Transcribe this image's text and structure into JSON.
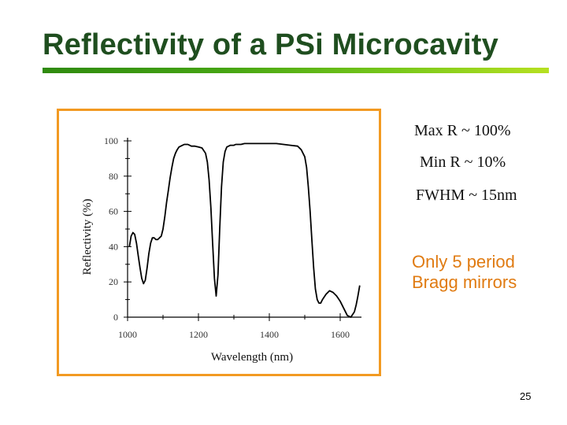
{
  "slide": {
    "title": "Reflectivity of a PSi Microcavity",
    "page_number": "25",
    "annotations": {
      "max_r": "Max R ~ 100%",
      "min_r": "Min R ~ 10%",
      "fwhm": "FWHM ~ 15nm",
      "note_line1": "Only 5 period",
      "note_line2": "Bragg mirrors"
    },
    "colors": {
      "title": "#1f4e1f",
      "accent_orange": "#f29a22",
      "note_orange": "#e07b12",
      "curve": "#000000"
    }
  },
  "chart_data": {
    "type": "line",
    "title": "",
    "xlabel": "Wavelength (nm)",
    "ylabel": "Reflectivity (%)",
    "xlim": [
      1000,
      1660
    ],
    "ylim": [
      0,
      100
    ],
    "xticks": [
      1000,
      1200,
      1400,
      1600
    ],
    "yticks": [
      0,
      20,
      40,
      60,
      80,
      100
    ],
    "grid": false,
    "series": [
      {
        "name": "reflectivity",
        "x": [
          1005,
          1010,
          1015,
          1020,
          1025,
          1030,
          1035,
          1040,
          1045,
          1050,
          1055,
          1060,
          1065,
          1070,
          1075,
          1080,
          1085,
          1090,
          1095,
          1100,
          1105,
          1110,
          1115,
          1120,
          1125,
          1130,
          1135,
          1140,
          1145,
          1150,
          1155,
          1160,
          1165,
          1170,
          1175,
          1180,
          1190,
          1200,
          1210,
          1220,
          1225,
          1230,
          1235,
          1240,
          1245,
          1250,
          1255,
          1260,
          1265,
          1270,
          1275,
          1280,
          1285,
          1290,
          1295,
          1300,
          1305,
          1310,
          1320,
          1330,
          1340,
          1360,
          1380,
          1400,
          1420,
          1440,
          1460,
          1480,
          1490,
          1500,
          1505,
          1510,
          1515,
          1520,
          1525,
          1530,
          1535,
          1540,
          1545,
          1550,
          1560,
          1570,
          1580,
          1590,
          1600,
          1610,
          1620,
          1630,
          1640,
          1645,
          1650,
          1655
        ],
        "y": [
          40,
          46,
          48,
          47,
          42,
          35,
          28,
          22,
          19,
          21,
          28,
          36,
          42,
          45,
          45,
          44,
          44,
          45,
          46,
          50,
          57,
          65,
          72,
          79,
          85,
          90,
          93,
          95,
          96.5,
          97,
          97.5,
          98,
          98,
          98,
          97.5,
          97,
          97,
          96.5,
          96,
          93,
          88,
          78,
          62,
          42,
          22,
          12,
          24,
          50,
          74,
          88,
          94,
          96.5,
          97,
          97.5,
          97.5,
          97.5,
          98,
          98,
          98,
          98.5,
          98.5,
          98.5,
          98.5,
          98.5,
          98.5,
          98,
          97.5,
          97,
          95,
          91,
          85,
          74,
          60,
          44,
          28,
          16,
          10,
          8,
          8,
          10,
          13,
          15,
          14,
          12,
          9,
          5,
          1,
          0,
          3,
          7,
          12,
          18
        ]
      }
    ]
  }
}
